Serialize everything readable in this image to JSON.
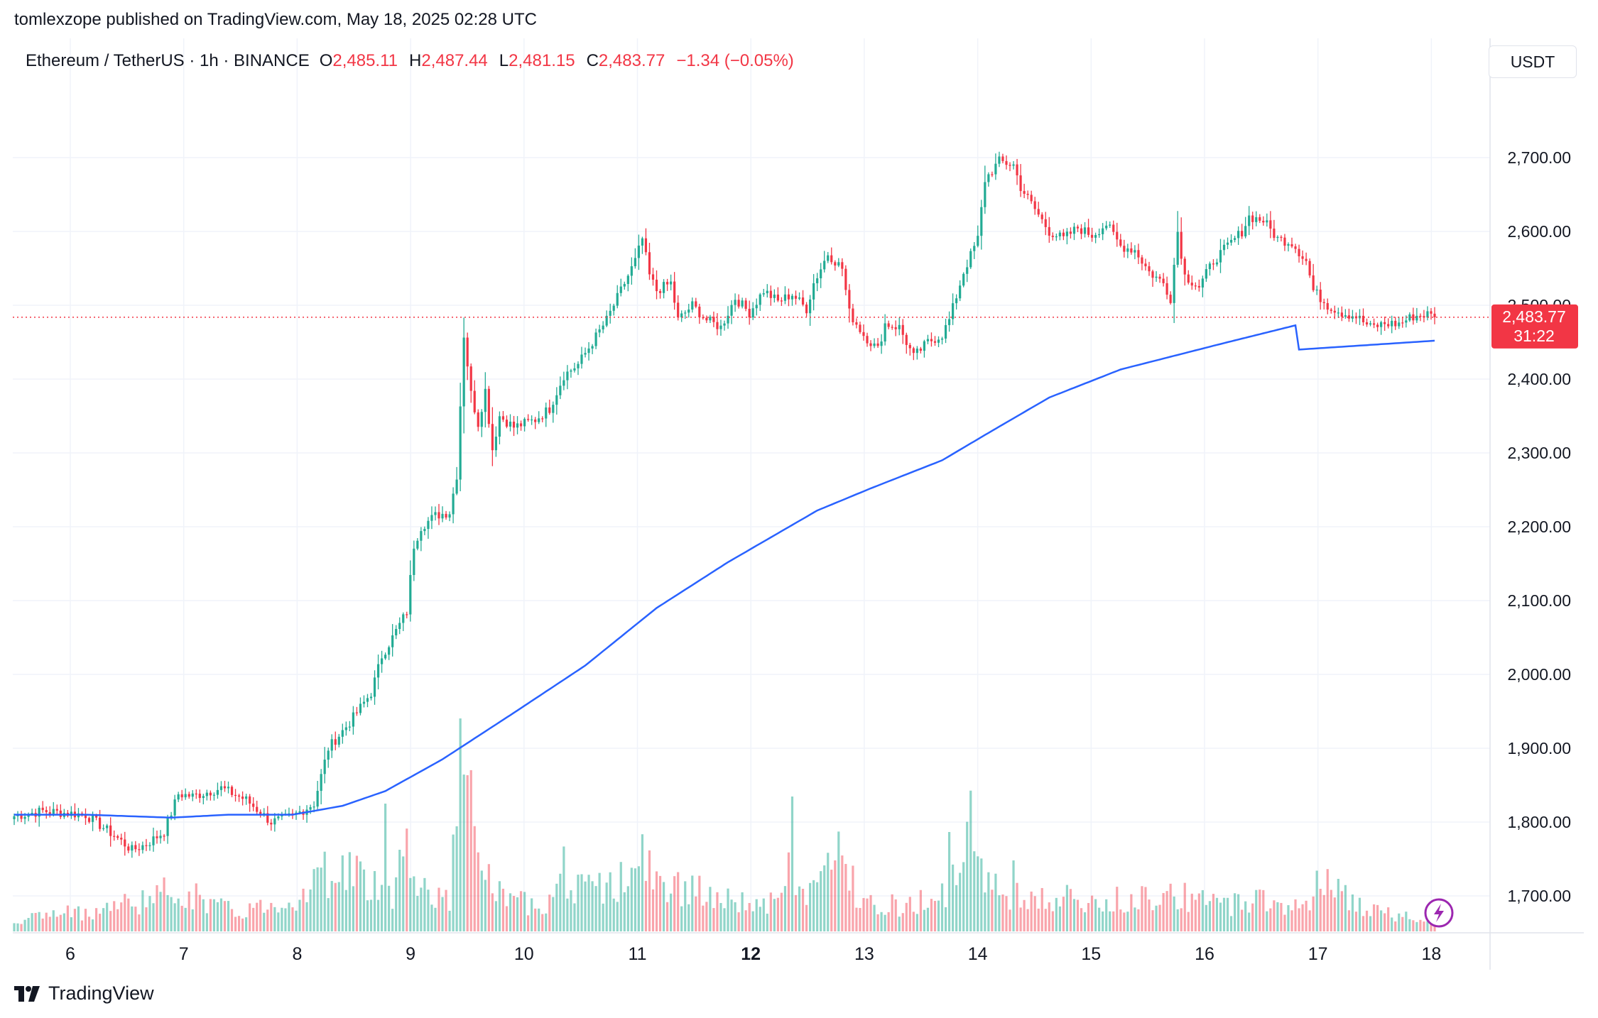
{
  "publication": {
    "text": "tomlexzope published on TradingView.com, May 18, 2025 02:28 UTC"
  },
  "header": {
    "symbol": "Ethereum / TetherUS · 1h · BINANCE",
    "open_label": "O",
    "open": "2,485.11",
    "high_label": "H",
    "high": "2,487.44",
    "low_label": "L",
    "low": "2,481.15",
    "close_label": "C",
    "close": "2,483.77",
    "change": "−1.34 (−0.05%)"
  },
  "currency_button": {
    "label": "USDT"
  },
  "brand": {
    "name": "TradingView",
    "icon": "tradingview-logo-icon"
  },
  "price_badge": {
    "price": "2,483.77",
    "countdown": "31:22"
  },
  "colors": {
    "up": "#22ab94",
    "down": "#f23645",
    "ma": "#2962ff",
    "grid": "#f0f3fa",
    "axis_text": "#131722"
  },
  "chart_data": {
    "type": "candlestick",
    "ylim": [
      1660,
      2760
    ],
    "y_ticks": [
      "1,700.00",
      "1,800.00",
      "1,900.00",
      "2,000.00",
      "2,100.00",
      "2,200.00",
      "2,300.00",
      "2,400.00",
      "2,500.00",
      "2,600.00",
      "2,700.00"
    ],
    "y_tick_values": [
      1700,
      1800,
      1900,
      2000,
      2100,
      2200,
      2300,
      2400,
      2500,
      2600,
      2700
    ],
    "x_ticks": [
      "6",
      "7",
      "8",
      "9",
      "10",
      "11",
      "12",
      "13",
      "14",
      "15",
      "16",
      "17",
      "18"
    ],
    "x_tick_bold": [
      false,
      false,
      false,
      false,
      false,
      false,
      true,
      false,
      false,
      false,
      false,
      false,
      false
    ],
    "last_price": 2483.77,
    "price_anchors": [
      [
        0,
        1808
      ],
      [
        8,
        1815
      ],
      [
        20,
        1810
      ],
      [
        28,
        1782
      ],
      [
        33,
        1762
      ],
      [
        37,
        1770
      ],
      [
        42,
        1787
      ],
      [
        46,
        1838
      ],
      [
        50,
        1835
      ],
      [
        58,
        1846
      ],
      [
        65,
        1830
      ],
      [
        72,
        1800
      ],
      [
        78,
        1808
      ],
      [
        84,
        1825
      ],
      [
        88,
        1900
      ],
      [
        94,
        1935
      ],
      [
        100,
        1975
      ],
      [
        103,
        2025
      ],
      [
        106,
        2050
      ],
      [
        110,
        2085
      ],
      [
        112,
        2175
      ],
      [
        114,
        2200
      ],
      [
        118,
        2215
      ],
      [
        122,
        2220
      ],
      [
        124,
        2270
      ],
      [
        126,
        2460
      ],
      [
        128,
        2380
      ],
      [
        130,
        2340
      ],
      [
        132,
        2385
      ],
      [
        134,
        2305
      ],
      [
        136,
        2350
      ],
      [
        140,
        2335
      ],
      [
        146,
        2345
      ],
      [
        150,
        2360
      ],
      [
        154,
        2405
      ],
      [
        158,
        2420
      ],
      [
        162,
        2450
      ],
      [
        166,
        2480
      ],
      [
        170,
        2520
      ],
      [
        174,
        2560
      ],
      [
        176,
        2590
      ],
      [
        178,
        2540
      ],
      [
        180,
        2520
      ],
      [
        184,
        2530
      ],
      [
        186,
        2480
      ],
      [
        190,
        2500
      ],
      [
        194,
        2480
      ],
      [
        198,
        2470
      ],
      [
        202,
        2510
      ],
      [
        206,
        2490
      ],
      [
        210,
        2520
      ],
      [
        214,
        2505
      ],
      [
        218,
        2515
      ],
      [
        222,
        2495
      ],
      [
        224,
        2530
      ],
      [
        228,
        2570
      ],
      [
        232,
        2550
      ],
      [
        234,
        2490
      ],
      [
        238,
        2460
      ],
      [
        242,
        2440
      ],
      [
        244,
        2475
      ],
      [
        248,
        2470
      ],
      [
        250,
        2450
      ],
      [
        252,
        2430
      ],
      [
        256,
        2450
      ],
      [
        260,
        2460
      ],
      [
        262,
        2480
      ],
      [
        266,
        2545
      ],
      [
        270,
        2590
      ],
      [
        272,
        2670
      ],
      [
        276,
        2695
      ],
      [
        280,
        2690
      ],
      [
        282,
        2660
      ],
      [
        286,
        2630
      ],
      [
        290,
        2600
      ],
      [
        294,
        2590
      ],
      [
        298,
        2605
      ],
      [
        302,
        2595
      ],
      [
        306,
        2610
      ],
      [
        310,
        2580
      ],
      [
        314,
        2575
      ],
      [
        318,
        2545
      ],
      [
        322,
        2530
      ],
      [
        324,
        2510
      ],
      [
        326,
        2600
      ],
      [
        328,
        2540
      ],
      [
        332,
        2525
      ],
      [
        336,
        2560
      ],
      [
        340,
        2580
      ],
      [
        344,
        2600
      ],
      [
        346,
        2620
      ],
      [
        350,
        2615
      ],
      [
        354,
        2590
      ],
      [
        358,
        2585
      ],
      [
        362,
        2560
      ],
      [
        364,
        2520
      ],
      [
        368,
        2500
      ],
      [
        372,
        2490
      ],
      [
        376,
        2485
      ],
      [
        380,
        2470
      ],
      [
        384,
        2475
      ],
      [
        388,
        2475
      ],
      [
        392,
        2485
      ],
      [
        396,
        2488
      ],
      [
        398,
        2483.77
      ]
    ],
    "volume_anchors": [
      [
        0,
        18
      ],
      [
        20,
        28
      ],
      [
        34,
        42
      ],
      [
        46,
        58
      ],
      [
        62,
        26
      ],
      [
        80,
        48
      ],
      [
        86,
        80
      ],
      [
        96,
        90
      ],
      [
        100,
        45
      ],
      [
        104,
        108
      ],
      [
        106,
        50
      ],
      [
        110,
        125
      ],
      [
        112,
        70
      ],
      [
        118,
        55
      ],
      [
        122,
        40
      ],
      [
        125,
        220
      ],
      [
        127,
        215
      ],
      [
        130,
        95
      ],
      [
        134,
        60
      ],
      [
        140,
        38
      ],
      [
        150,
        45
      ],
      [
        154,
        85
      ],
      [
        160,
        55
      ],
      [
        170,
        70
      ],
      [
        176,
        100
      ],
      [
        182,
        55
      ],
      [
        188,
        65
      ],
      [
        196,
        45
      ],
      [
        206,
        40
      ],
      [
        214,
        38
      ],
      [
        218,
        95
      ],
      [
        220,
        50
      ],
      [
        226,
        70
      ],
      [
        230,
        118
      ],
      [
        236,
        60
      ],
      [
        242,
        40
      ],
      [
        250,
        35
      ],
      [
        258,
        50
      ],
      [
        264,
        70
      ],
      [
        268,
        138
      ],
      [
        272,
        90
      ],
      [
        278,
        45
      ],
      [
        284,
        50
      ],
      [
        290,
        42
      ],
      [
        296,
        48
      ],
      [
        302,
        35
      ],
      [
        310,
        45
      ],
      [
        318,
        50
      ],
      [
        324,
        60
      ],
      [
        330,
        42
      ],
      [
        340,
        38
      ],
      [
        346,
        45
      ],
      [
        350,
        48
      ],
      [
        356,
        32
      ],
      [
        362,
        40
      ],
      [
        366,
        72
      ],
      [
        370,
        58
      ],
      [
        380,
        28
      ],
      [
        392,
        20
      ],
      [
        398,
        24
      ]
    ],
    "volume_spikes": {
      "125": 300,
      "127": 220,
      "104": 180,
      "108": 115,
      "218": 190,
      "262": 140,
      "230": 100,
      "198": 40,
      "280": 100,
      "366": 60
    },
    "ma_anchors": [
      [
        0,
        1810
      ],
      [
        20,
        1810
      ],
      [
        44,
        1806
      ],
      [
        60,
        1810
      ],
      [
        78,
        1810
      ],
      [
        92,
        1822
      ],
      [
        104,
        1842
      ],
      [
        120,
        1885
      ],
      [
        140,
        1948
      ],
      [
        160,
        2012
      ],
      [
        180,
        2090
      ],
      [
        200,
        2152
      ],
      [
        210,
        2180
      ],
      [
        225,
        2222
      ],
      [
        240,
        2252
      ],
      [
        260,
        2290
      ],
      [
        274,
        2330
      ],
      [
        290,
        2375
      ],
      [
        310,
        2413
      ],
      [
        340,
        2450
      ],
      [
        360,
        2474
      ],
      [
        372,
        2490
      ],
      [
        390,
        2452
      ],
      [
        398,
        2452
      ]
    ]
  }
}
